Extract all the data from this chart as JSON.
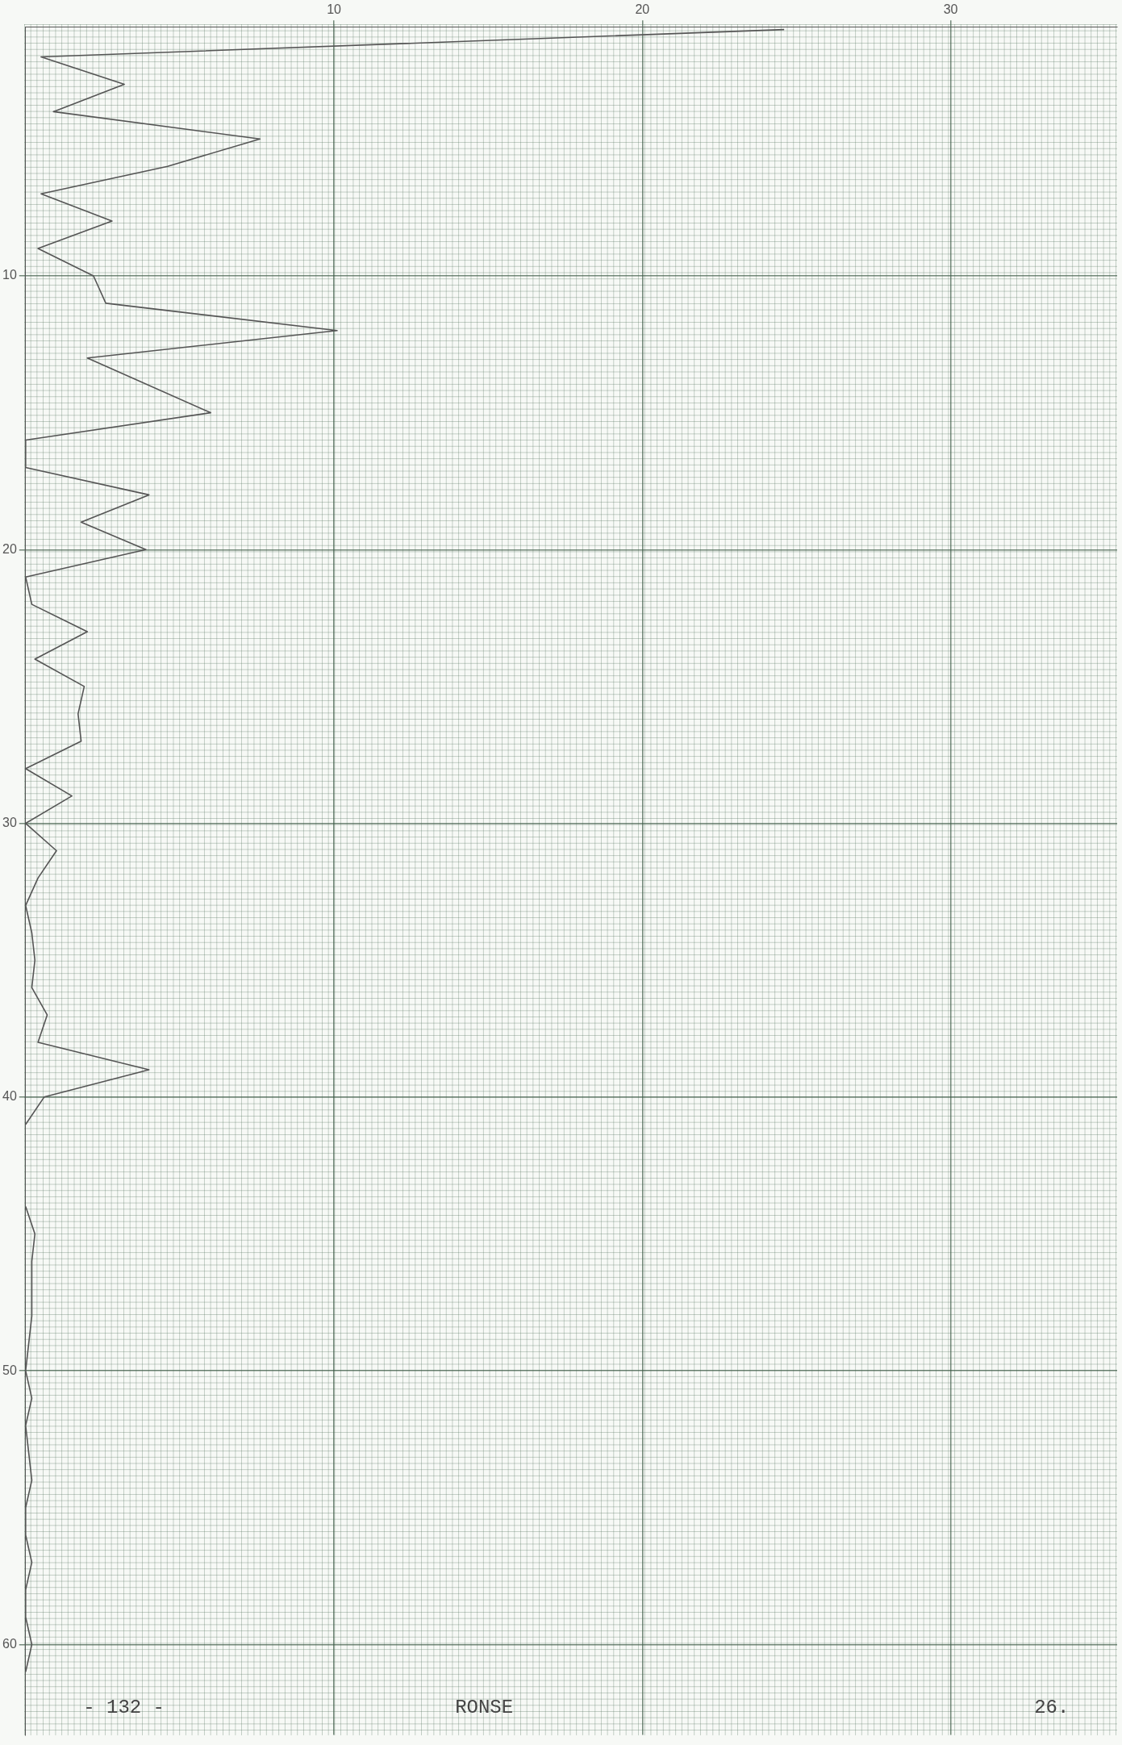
{
  "chart_data": {
    "type": "line",
    "orientation": "horizontal",
    "x": [
      1,
      2,
      3,
      4,
      5,
      6,
      7,
      8,
      9,
      10,
      11,
      12,
      13,
      15,
      16,
      17,
      18,
      19,
      20,
      21,
      22,
      23,
      24,
      25,
      26,
      27,
      28,
      29,
      30,
      31,
      32,
      33,
      34,
      35,
      36,
      37,
      38,
      39,
      40,
      41,
      42,
      43,
      44,
      45,
      46,
      47,
      48,
      49,
      50,
      51,
      52,
      53,
      54,
      55,
      56,
      57,
      58,
      59,
      60,
      61
    ],
    "values": [
      24.6,
      0.5,
      3.2,
      0.9,
      7.6,
      4.6,
      0.5,
      2.8,
      0.4,
      2.2,
      2.6,
      10.1,
      2.0,
      6.0,
      0,
      0,
      4.0,
      1.8,
      3.9,
      0,
      0.2,
      2.0,
      0.3,
      1.9,
      1.7,
      1.8,
      0,
      1.5,
      0,
      1.0,
      0.4,
      0,
      0.2,
      0.3,
      0.2,
      0.7,
      0.4,
      4.0,
      0.6,
      0,
      null,
      null,
      0,
      0.3,
      0.2,
      0.2,
      0.2,
      0.1,
      0,
      0.2,
      0,
      0.1,
      0.2,
      0,
      0,
      0.2,
      0,
      0,
      0.2,
      0
    ],
    "color": "#555555",
    "line_style": "solid",
    "marker": "none",
    "xlim": [
      0,
      35.4
    ],
    "xticks": [
      10,
      20,
      30
    ],
    "ylim": [
      63.3,
      0.9
    ],
    "yticks": [
      10,
      20,
      30,
      40,
      50,
      60
    ],
    "grid": true,
    "annotations": [
      "- 132 -",
      "RONSE",
      "26."
    ]
  }
}
